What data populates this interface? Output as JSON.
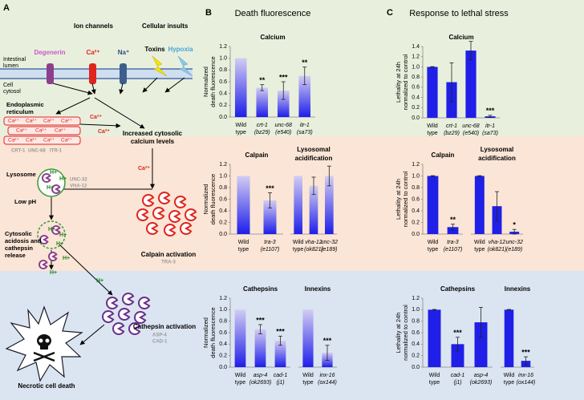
{
  "panels": [
    {
      "label": "A"
    },
    {
      "label": "B",
      "title": "Death fluorescence"
    },
    {
      "label": "C",
      "title": "Response to lethal stress"
    }
  ],
  "diagram": {
    "ion_channels": "Ion channels",
    "cellular_insults": "Cellular insults",
    "lumen": [
      "Intestinal",
      "lumen"
    ],
    "cytosol": [
      "Cell",
      "cytosol"
    ],
    "degenerin": "Degenerin",
    "ca": "Ca²⁺",
    "na": "Na⁺",
    "toxins": "Toxins",
    "hypoxia": "Hypoxia",
    "er": [
      "Endoplasmic",
      "reticulum"
    ],
    "er_proteins": [
      "CRT-1",
      "UNC-68",
      "ITR-1"
    ],
    "increased": [
      "Increased cytosolic",
      "calcium levels"
    ],
    "lysosome": "Lysosome",
    "lyso_proteins": [
      "UNC-32",
      "VHA-12"
    ],
    "low_ph": "Low pH",
    "h": "H+",
    "acidosis": [
      "Cytosolic",
      "acidosis and",
      "cathepsin",
      "release"
    ],
    "calpain": "Calpain activation",
    "calpain_protein": "TRA-3",
    "cathepsin": "Cathepsin activation",
    "cathepsin_proteins": [
      "ASP-4",
      "CAD-1"
    ],
    "necrotic": "Necrotic cell death"
  },
  "chart_data": [
    {
      "type": "bar",
      "title": "Calcium",
      "ylabel": [
        "Normalized",
        "death fluorescence"
      ],
      "categories": [
        [
          "Wild",
          "type"
        ],
        [
          "crt-1",
          "(bz29)"
        ],
        [
          "unc-68",
          "(e540)"
        ],
        [
          "itr-1",
          "(sa73)"
        ]
      ],
      "values": [
        1.0,
        0.5,
        0.45,
        0.7
      ],
      "errors": [
        null,
        0.05,
        0.15,
        0.15
      ],
      "annotations": [
        null,
        "**",
        "***",
        "**"
      ],
      "color": "#2323ee",
      "gradient": true,
      "ylim": [
        0,
        1.2
      ],
      "yticks": [
        {
          "value": 0,
          "label": "0.0"
        },
        0.2,
        0.4,
        0.6,
        0.8,
        {
          "value": 1,
          "label": "1.0"
        },
        1.2
      ]
    },
    {
      "type": "bar",
      "title": "Calpain",
      "ylabel": [
        "Normalized",
        "death fluorescence"
      ],
      "categories": [
        [
          "Wild",
          "type"
        ],
        [
          "tra-3",
          "(e1107)"
        ]
      ],
      "values": [
        1.0,
        0.58
      ],
      "errors": [
        null,
        0.13
      ],
      "annotations": [
        null,
        "***"
      ],
      "color": "#2323ee",
      "gradient": true,
      "ylim": [
        0,
        1.2
      ],
      "yticks": [
        {
          "value": 0,
          "label": "0.0"
        },
        0.2,
        0.4,
        0.6,
        0.8,
        {
          "value": 1,
          "label": "1.0"
        },
        1.2
      ]
    },
    {
      "type": "bar",
      "title": [
        "Lysosomal",
        "acidification"
      ],
      "categories": [
        [
          "Wild",
          "type"
        ],
        [
          "vha-12",
          "(ok821)"
        ],
        [
          "unc-32",
          "(e189)"
        ]
      ],
      "values": [
        1.0,
        0.83,
        1.0
      ],
      "errors": [
        null,
        0.15,
        0.17
      ],
      "annotations": [
        null,
        null,
        null
      ],
      "color": "#2323ee",
      "gradient": true,
      "ylim": [
        0,
        1.2
      ]
    },
    {
      "type": "bar",
      "title": "Cathepsins",
      "ylabel": [
        "Normalized",
        "death fluorescence"
      ],
      "categories": [
        [
          "Wild",
          "type"
        ],
        [
          "asp-4",
          "(ok2693)"
        ],
        [
          "cad-1",
          "(j1)"
        ]
      ],
      "values": [
        1.0,
        0.66,
        0.46
      ],
      "errors": [
        null,
        0.08,
        0.08
      ],
      "annotations": [
        null,
        "***",
        "***"
      ],
      "color": "#2323ee",
      "gradient": true,
      "ylim": [
        0,
        1.2
      ],
      "yticks": [
        {
          "value": 0,
          "label": "0.0"
        },
        0.2,
        0.4,
        0.6,
        0.8,
        {
          "value": 1,
          "label": "1.0"
        },
        1.2
      ]
    },
    {
      "type": "bar",
      "title": "Innexins",
      "categories": [
        [
          "Wild",
          "type"
        ],
        [
          "inx-16",
          "(ox144)"
        ]
      ],
      "values": [
        1.0,
        0.25
      ],
      "errors": [
        null,
        0.13
      ],
      "annotations": [
        null,
        "***"
      ],
      "color": "#2323ee",
      "gradient": true,
      "ylim": [
        0,
        1.2
      ]
    },
    {
      "type": "bar",
      "title": "Calcium",
      "ylabel": [
        "Lethality at 24h",
        "normalized to control"
      ],
      "categories": [
        [
          "Wild",
          "type"
        ],
        [
          "crt-1",
          "(bz29)"
        ],
        [
          "unc-68",
          "(e540)"
        ],
        [
          "itr-1",
          "(sa73)"
        ]
      ],
      "values": [
        1.0,
        0.7,
        1.32,
        0.03
      ],
      "errors": [
        0.005,
        0.38,
        0.18,
        0.02
      ],
      "annotations": [
        null,
        null,
        null,
        "***"
      ],
      "color": "#1f1fe8",
      "gradient": false,
      "ylim": [
        0,
        1.4
      ],
      "yticks": [
        {
          "value": 0,
          "label": "0.0"
        },
        0.2,
        0.4,
        0.6,
        0.8,
        {
          "value": 1,
          "label": "1.0"
        },
        1.2,
        1.4
      ]
    },
    {
      "type": "bar",
      "title": "Calpain",
      "ylabel": [
        "Lethality at 24h",
        "normalized to control"
      ],
      "categories": [
        [
          "Wild",
          "type"
        ],
        [
          "tra-3",
          "(e1107)"
        ]
      ],
      "values": [
        1.0,
        0.12
      ],
      "errors": [
        0.005,
        0.05
      ],
      "annotations": [
        null,
        "**"
      ],
      "color": "#1f1fe8",
      "gradient": false,
      "ylim": [
        0,
        1.2
      ],
      "yticks": [
        {
          "value": 0,
          "label": "0.0"
        },
        0.2,
        0.4,
        0.6,
        0.8,
        {
          "value": 1,
          "label": "1.0"
        },
        1.2
      ]
    },
    {
      "type": "bar",
      "title": [
        "Lysosomal",
        "acidification"
      ],
      "categories": [
        [
          "Wild",
          "type"
        ],
        [
          "vha-12",
          "(ok821)"
        ],
        [
          "unc-32",
          "(e189)"
        ]
      ],
      "values": [
        1.0,
        0.48,
        0.04
      ],
      "errors": [
        0.005,
        0.25,
        0.04
      ],
      "annotations": [
        null,
        null,
        "*"
      ],
      "color": "#1f1fe8",
      "gradient": false,
      "ylim": [
        0,
        1.2
      ]
    },
    {
      "type": "bar",
      "title": "Cathepsins",
      "ylabel": [
        "Lethality at 24h",
        "normalized to control"
      ],
      "categories": [
        [
          "Wild",
          "type"
        ],
        [
          "cad-1",
          "(j1)"
        ],
        [
          "asp-4",
          "(ok2693)"
        ]
      ],
      "values": [
        1.0,
        0.4,
        0.78
      ],
      "errors": [
        0.005,
        0.12,
        0.26
      ],
      "annotations": [
        null,
        "***",
        null
      ],
      "color": "#1f1fe8",
      "gradient": false,
      "ylim": [
        0,
        1.2
      ],
      "yticks": [
        {
          "value": 0,
          "label": "0.0"
        },
        0.2,
        0.4,
        0.6,
        0.8,
        {
          "value": 1,
          "label": "1.0"
        },
        1.2
      ]
    },
    {
      "type": "bar",
      "title": "Innexins",
      "categories": [
        [
          "Wild",
          "type"
        ],
        [
          "inx-16",
          "(ox144)"
        ]
      ],
      "values": [
        1.0,
        0.11
      ],
      "errors": [
        0.005,
        0.07
      ],
      "annotations": [
        null,
        "***"
      ],
      "color": "#1f1fe8",
      "gradient": false,
      "ylim": [
        0,
        1.2
      ]
    }
  ]
}
